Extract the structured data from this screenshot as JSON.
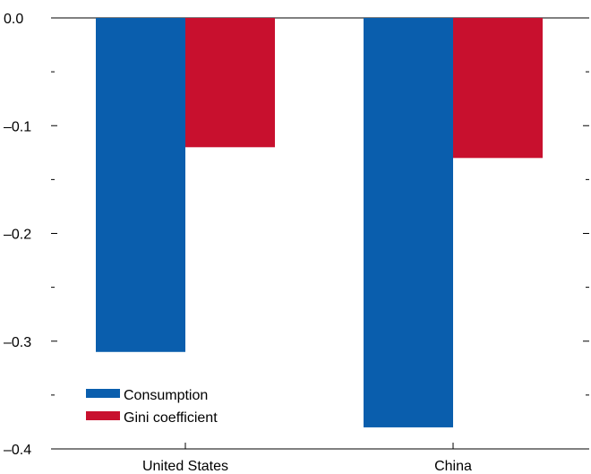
{
  "chart_data": {
    "type": "bar",
    "categories": [
      "United States",
      "China"
    ],
    "series": [
      {
        "name": "Consumption",
        "values": [
          -0.31,
          -0.38
        ],
        "color": "#0a5ead"
      },
      {
        "name": "Gini coefficient",
        "values": [
          -0.12,
          -0.13
        ],
        "color": "#c8102e"
      }
    ],
    "ylim": [
      -0.4,
      0.0
    ],
    "yticks": [
      0.0,
      -0.1,
      -0.2,
      -0.3,
      -0.4
    ],
    "ytick_labels": [
      "0.0",
      "–0.1",
      "–0.2",
      "–0.3",
      "–0.4"
    ],
    "yminor_ticks": [
      -0.05,
      -0.15,
      -0.25,
      -0.35
    ],
    "grid": false,
    "legend_position": "bottom-left",
    "xlabel": "",
    "ylabel": "",
    "title": ""
  }
}
